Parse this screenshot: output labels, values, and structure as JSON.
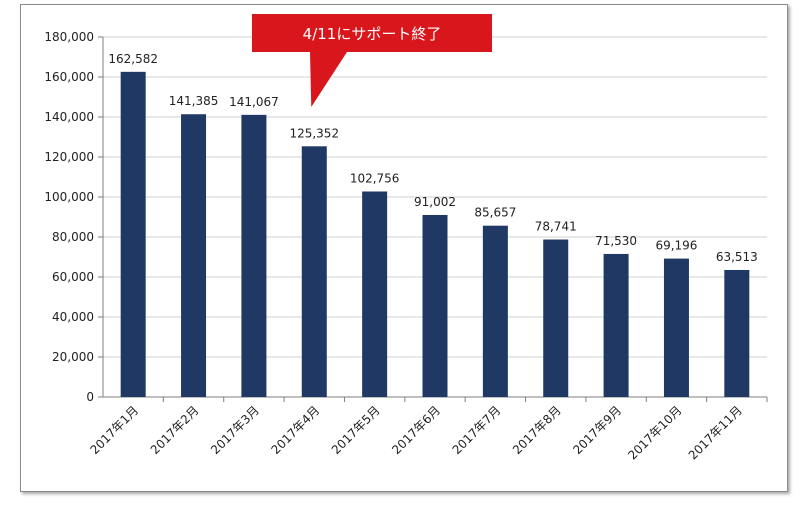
{
  "chart_data": {
    "type": "bar",
    "categories": [
      "2017年1月",
      "2017年2月",
      "2017年3月",
      "2017年4月",
      "2017年5月",
      "2017年6月",
      "2017年7月",
      "2017年8月",
      "2017年9月",
      "2017年10月",
      "2017年11月"
    ],
    "values": [
      162582,
      141385,
      141067,
      125352,
      102756,
      91002,
      85657,
      78741,
      71530,
      69196,
      63513
    ],
    "data_labels": [
      "162,582",
      "141,385",
      "141,067",
      "125,352",
      "102,756",
      "91,002",
      "85,657",
      "78,741",
      "71,530",
      "69,196",
      "63,513"
    ],
    "y_ticks": [
      "0",
      "20,000",
      "40,000",
      "60,000",
      "80,000",
      "100,000",
      "120,000",
      "140,000",
      "160,000",
      "180,000"
    ],
    "ylim": [
      0,
      180000
    ],
    "grid": true,
    "bar_color": "#1f3864",
    "annotation": {
      "text": "4/11にサポート終了",
      "target_category": "2017年4月",
      "color": "#d9161c"
    }
  }
}
